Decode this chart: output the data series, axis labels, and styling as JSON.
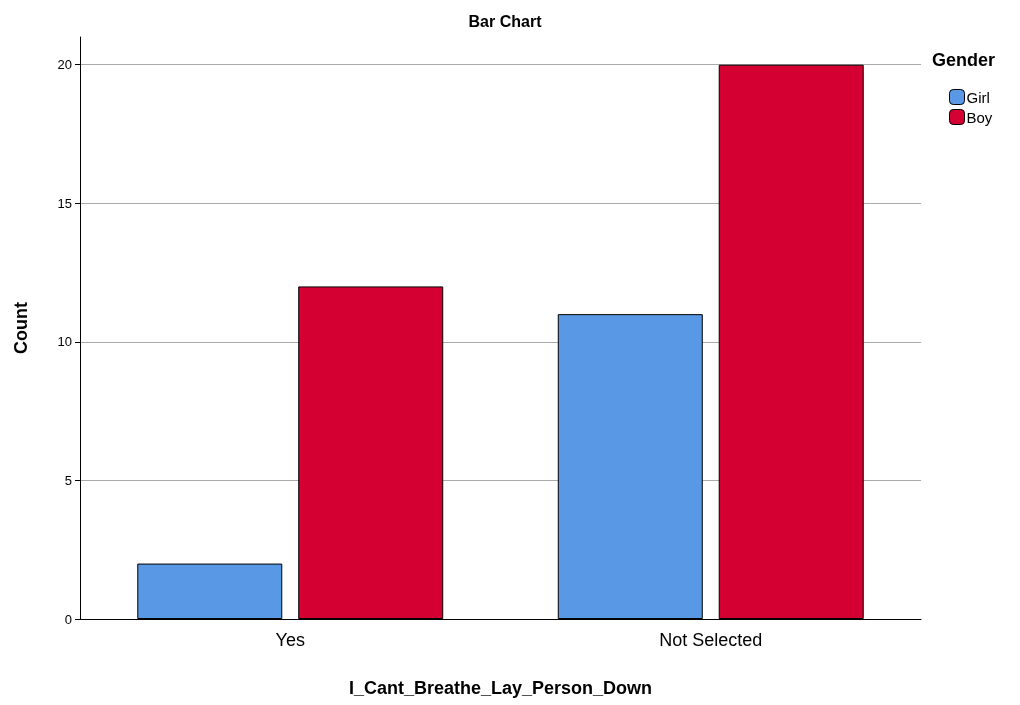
{
  "chart_data": {
    "type": "bar",
    "title": "Bar Chart",
    "xlabel": "I_Cant_Breathe_Lay_Person_Down",
    "ylabel": "Count",
    "legend_title": "Gender",
    "categories": [
      "Yes",
      "Not Selected"
    ],
    "series": [
      {
        "name": "Girl",
        "color": "#5898e4",
        "values": [
          2,
          11
        ]
      },
      {
        "name": "Boy",
        "color": "#d50032",
        "values": [
          12,
          20
        ]
      }
    ],
    "ylim": [
      0,
      21
    ],
    "yticks": [
      0,
      5,
      10,
      15,
      20
    ],
    "grid": "y",
    "legend": "top right"
  }
}
